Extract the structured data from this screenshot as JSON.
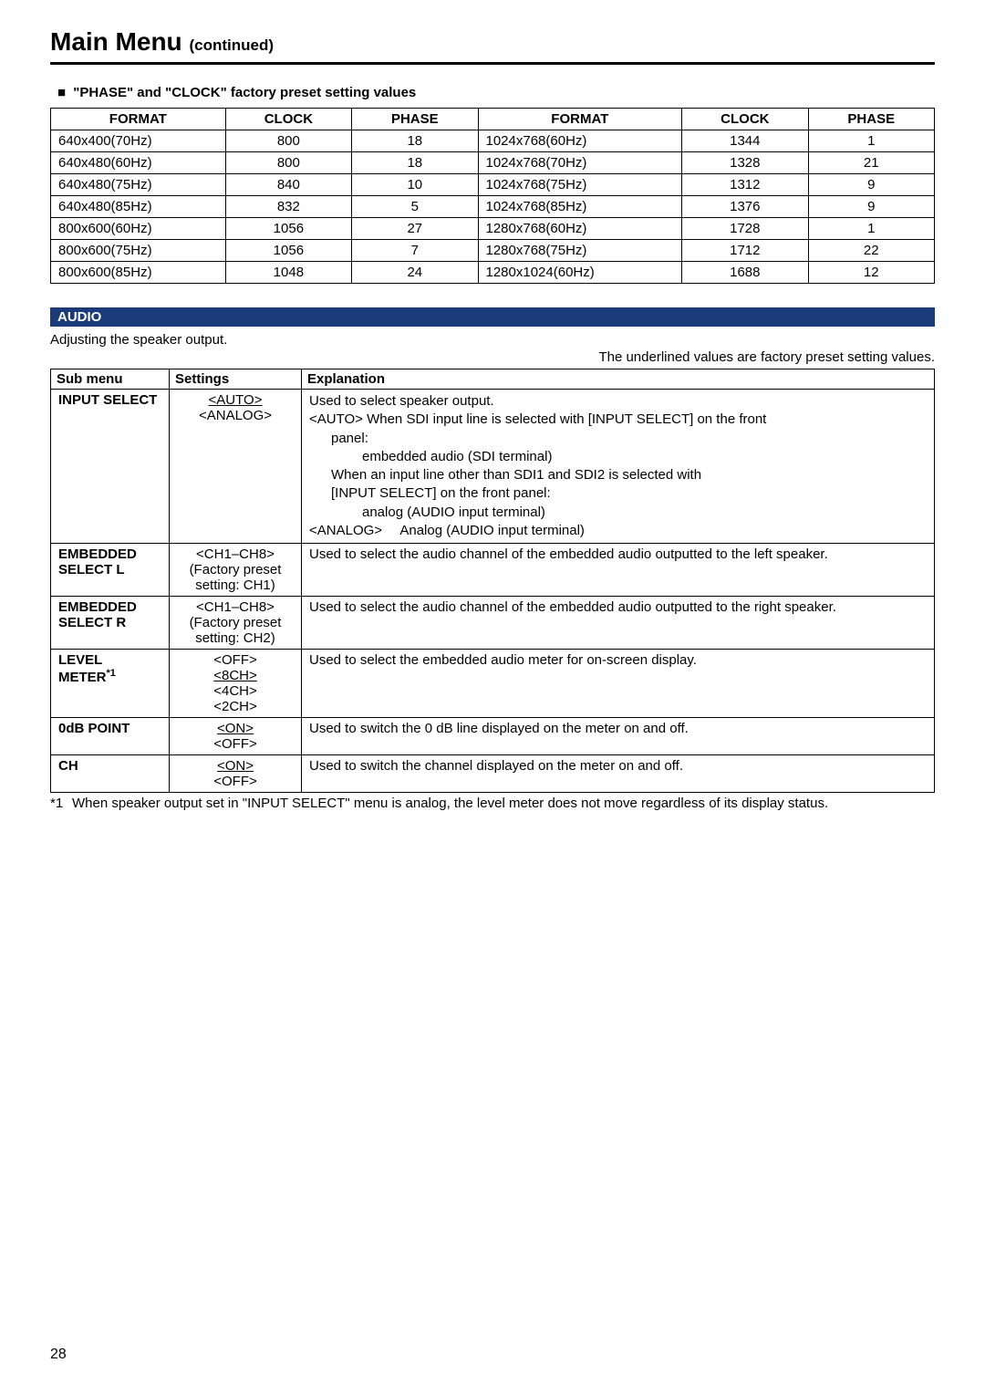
{
  "header": {
    "title": "Main Menu",
    "continued": "(continued)"
  },
  "preset_section": {
    "subtitle": "\"PHASE\" and \"CLOCK\" factory preset setting values",
    "headers": [
      "FORMAT",
      "CLOCK",
      "PHASE",
      "FORMAT",
      "CLOCK",
      "PHASE"
    ],
    "rows": [
      [
        "640x400(70Hz)",
        "800",
        "18",
        "1024x768(60Hz)",
        "1344",
        "1"
      ],
      [
        "640x480(60Hz)",
        "800",
        "18",
        "1024x768(70Hz)",
        "1328",
        "21"
      ],
      [
        "640x480(75Hz)",
        "840",
        "10",
        "1024x768(75Hz)",
        "1312",
        "9"
      ],
      [
        "640x480(85Hz)",
        "832",
        "5",
        "1024x768(85Hz)",
        "1376",
        "9"
      ],
      [
        "800x600(60Hz)",
        "1056",
        "27",
        "1280x768(60Hz)",
        "1728",
        "1"
      ],
      [
        "800x600(75Hz)",
        "1056",
        "7",
        "1280x768(75Hz)",
        "1712",
        "22"
      ],
      [
        "800x600(85Hz)",
        "1048",
        "24",
        "1280x1024(60Hz)",
        "1688",
        "12"
      ]
    ],
    "col_widths": [
      "18%",
      "13%",
      "13%",
      "21%",
      "13%",
      "13%"
    ]
  },
  "audio_section": {
    "bar_label": "AUDIO",
    "bar_bg": "#1a3a7a",
    "bar_fg": "#ffffff",
    "intro": "Adjusting the speaker output.",
    "factory_note": "The underlined values are factory preset setting values.",
    "table_headers": [
      "Sub menu",
      "Settings",
      "Explanation"
    ],
    "rows": {
      "input_select": {
        "sub": "INPUT SELECT",
        "settings": [
          {
            "text": "<AUTO>",
            "underline": true
          },
          {
            "text": "<ANALOG>",
            "underline": false
          }
        ],
        "explain": {
          "line1": "Used to select speaker output.",
          "auto_tag": "<AUTO>",
          "auto_l1": "When SDI input line is selected with [INPUT SELECT] on the front panel:",
          "auto_l2": "embedded audio (SDI terminal)",
          "auto_l3": "When an input line other than SDI1 and SDI2 is selected with [INPUT SELECT] on the front panel:",
          "auto_l4": "analog (AUDIO input terminal)",
          "analog_tag": "<ANALOG>",
          "analog_text": "Analog (AUDIO input terminal)"
        }
      },
      "embedded_l": {
        "sub": "EMBEDDED SELECT L",
        "settings_main": "<CH1–CH8>",
        "settings_note": "(Factory preset setting: CH1)",
        "explain": "Used to select the audio channel of the embedded audio outputted to the left speaker."
      },
      "embedded_r": {
        "sub": "EMBEDDED SELECT R",
        "settings_main": "<CH1–CH8>",
        "settings_note": "(Factory preset setting: CH2)",
        "explain": "Used to select the audio channel of the embedded audio outputted to the right speaker."
      },
      "level_meter": {
        "sub_main": "LEVEL METER",
        "sub_sup": "*1",
        "settings": [
          {
            "text": "<OFF>",
            "underline": false
          },
          {
            "text": "<8CH>",
            "underline": true
          },
          {
            "text": "<4CH>",
            "underline": false
          },
          {
            "text": "<2CH>",
            "underline": false
          }
        ],
        "explain": "Used to select the embedded audio meter for on-screen display."
      },
      "odb_point": {
        "sub": "0dB POINT",
        "settings": [
          {
            "text": "<ON>",
            "underline": true
          },
          {
            "text": "<OFF>",
            "underline": false
          }
        ],
        "explain": "Used to switch the 0 dB line displayed on the meter on and off."
      },
      "ch": {
        "sub": "CH",
        "settings": [
          {
            "text": "<ON>",
            "underline": true
          },
          {
            "text": "<OFF>",
            "underline": false
          }
        ],
        "explain": "Used to switch the channel displayed on the meter on and off."
      }
    },
    "footnote": {
      "mark": "*1",
      "text": "When speaker output set in \"INPUT SELECT\" menu is analog, the level meter does not move regardless of its display status."
    }
  },
  "page_number": "28"
}
